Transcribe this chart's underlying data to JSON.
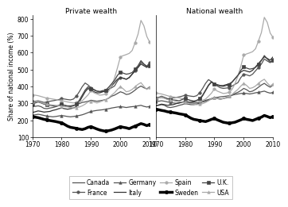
{
  "years": [
    1970,
    1971,
    1972,
    1973,
    1974,
    1975,
    1976,
    1977,
    1978,
    1979,
    1980,
    1981,
    1982,
    1983,
    1984,
    1985,
    1986,
    1987,
    1988,
    1989,
    1990,
    1991,
    1992,
    1993,
    1994,
    1995,
    1996,
    1997,
    1998,
    1999,
    2000,
    2001,
    2002,
    2003,
    2004,
    2005,
    2006,
    2007,
    2008,
    2009,
    2010
  ],
  "private": {
    "Canada": [
      280,
      282,
      285,
      280,
      270,
      268,
      272,
      275,
      280,
      285,
      290,
      288,
      285,
      285,
      288,
      292,
      298,
      305,
      308,
      312,
      318,
      315,
      312,
      315,
      318,
      322,
      330,
      342,
      348,
      358,
      368,
      362,
      352,
      355,
      365,
      378,
      392,
      402,
      392,
      385,
      398
    ],
    "France": [
      310,
      312,
      315,
      310,
      305,
      308,
      312,
      315,
      318,
      322,
      328,
      325,
      322,
      320,
      325,
      342,
      368,
      398,
      420,
      408,
      392,
      382,
      372,
      368,
      370,
      372,
      382,
      392,
      402,
      432,
      452,
      448,
      442,
      452,
      472,
      492,
      512,
      542,
      530,
      520,
      540
    ],
    "Germany": [
      230,
      232,
      235,
      232,
      228,
      225,
      222,
      220,
      222,
      225,
      228,
      225,
      222,
      220,
      222,
      225,
      228,
      232,
      238,
      245,
      252,
      255,
      258,
      260,
      262,
      265,
      268,
      272,
      275,
      278,
      280,
      278,
      275,
      278,
      280,
      282,
      285,
      288,
      282,
      278,
      282
    ],
    "Italy": [
      245,
      250,
      255,
      252,
      248,
      250,
      252,
      258,
      262,
      268,
      272,
      268,
      265,
      268,
      272,
      280,
      308,
      338,
      368,
      388,
      375,
      368,
      362,
      362,
      368,
      372,
      382,
      402,
      422,
      442,
      452,
      448,
      442,
      452,
      472,
      492,
      512,
      532,
      522,
      512,
      532
    ],
    "Spain": [
      350,
      348,
      345,
      340,
      335,
      330,
      328,
      325,
      322,
      318,
      315,
      312,
      308,
      305,
      302,
      305,
      308,
      315,
      332,
      350,
      375,
      362,
      355,
      348,
      350,
      355,
      372,
      405,
      450,
      510,
      575,
      582,
      588,
      595,
      612,
      658,
      708,
      790,
      758,
      695,
      660
    ],
    "Sweden": [
      220,
      218,
      215,
      210,
      205,
      202,
      198,
      195,
      192,
      188,
      185,
      175,
      165,
      158,
      155,
      152,
      148,
      145,
      150,
      158,
      162,
      155,
      148,
      142,
      138,
      135,
      138,
      142,
      148,
      155,
      162,
      158,
      155,
      150,
      158,
      165,
      172,
      180,
      175,
      168,
      175
    ],
    "U.K.": [
      298,
      302,
      308,
      302,
      295,
      290,
      288,
      285,
      282,
      288,
      295,
      288,
      282,
      280,
      285,
      295,
      318,
      348,
      378,
      398,
      385,
      378,
      372,
      370,
      375,
      378,
      395,
      415,
      435,
      465,
      485,
      478,
      472,
      475,
      482,
      502,
      522,
      552,
      532,
      518,
      522
    ],
    "USA": [
      305,
      308,
      312,
      305,
      298,
      295,
      292,
      290,
      288,
      285,
      282,
      280,
      278,
      275,
      272,
      275,
      278,
      285,
      295,
      308,
      312,
      308,
      302,
      308,
      315,
      322,
      332,
      348,
      362,
      382,
      398,
      385,
      368,
      372,
      382,
      398,
      412,
      422,
      400,
      382,
      395
    ]
  },
  "national": {
    "Canada": [
      285,
      288,
      292,
      288,
      278,
      275,
      278,
      282,
      288,
      292,
      298,
      295,
      292,
      292,
      295,
      302,
      310,
      318,
      322,
      328,
      335,
      330,
      325,
      328,
      332,
      338,
      348,
      358,
      365,
      375,
      388,
      380,
      368,
      372,
      382,
      395,
      408,
      418,
      405,
      395,
      408
    ],
    "France": [
      330,
      332,
      335,
      330,
      325,
      328,
      332,
      335,
      338,
      342,
      348,
      345,
      342,
      340,
      345,
      362,
      388,
      418,
      440,
      428,
      412,
      402,
      392,
      388,
      390,
      392,
      402,
      412,
      422,
      452,
      472,
      468,
      462,
      472,
      492,
      512,
      532,
      562,
      550,
      540,
      560
    ],
    "Germany": [
      310,
      312,
      315,
      312,
      308,
      305,
      302,
      300,
      302,
      305,
      308,
      305,
      302,
      300,
      302,
      305,
      308,
      312,
      318,
      325,
      332,
      335,
      338,
      340,
      342,
      345,
      348,
      352,
      355,
      358,
      360,
      358,
      355,
      358,
      362,
      365,
      368,
      372,
      365,
      360,
      365
    ],
    "Italy": [
      285,
      290,
      295,
      292,
      288,
      290,
      292,
      298,
      302,
      308,
      312,
      308,
      305,
      308,
      312,
      320,
      345,
      375,
      405,
      425,
      415,
      410,
      405,
      405,
      410,
      415,
      425,
      445,
      465,
      485,
      495,
      490,
      485,
      495,
      515,
      535,
      555,
      575,
      565,
      555,
      575
    ],
    "Spain": [
      360,
      358,
      355,
      350,
      345,
      340,
      338,
      335,
      332,
      328,
      325,
      322,
      318,
      315,
      312,
      315,
      318,
      325,
      342,
      360,
      385,
      372,
      365,
      358,
      360,
      365,
      382,
      415,
      460,
      520,
      585,
      592,
      598,
      605,
      622,
      668,
      718,
      808,
      778,
      715,
      688
    ],
    "Sweden": [
      265,
      262,
      258,
      255,
      250,
      248,
      245,
      242,
      238,
      235,
      232,
      222,
      212,
      205,
      202,
      198,
      195,
      192,
      198,
      205,
      210,
      202,
      195,
      188,
      185,
      182,
      185,
      188,
      195,
      202,
      210,
      205,
      202,
      198,
      205,
      212,
      218,
      228,
      222,
      215,
      222
    ],
    "U.K.": [
      330,
      335,
      342,
      335,
      328,
      322,
      320,
      318,
      315,
      322,
      330,
      322,
      315,
      312,
      318,
      328,
      348,
      378,
      408,
      428,
      415,
      408,
      402,
      400,
      405,
      408,
      425,
      445,
      465,
      495,
      515,
      508,
      502,
      505,
      512,
      532,
      552,
      582,
      562,
      545,
      552
    ],
    "USA": [
      330,
      332,
      338,
      330,
      322,
      318,
      315,
      312,
      310,
      308,
      305,
      302,
      298,
      295,
      292,
      295,
      298,
      305,
      315,
      328,
      332,
      328,
      322,
      328,
      335,
      342,
      352,
      368,
      382,
      402,
      418,
      405,
      388,
      392,
      402,
      418,
      432,
      442,
      420,
      402,
      415
    ]
  },
  "title_left": "Private wealth",
  "title_right": "National wealth",
  "ylabel": "Share of national income (%)",
  "ylim": [
    100,
    820
  ],
  "yticks": [
    100,
    200,
    300,
    400,
    500,
    600,
    700,
    800
  ],
  "xlim": [
    1970,
    2010
  ],
  "xticks": [
    1970,
    1980,
    1990,
    2000,
    2010
  ],
  "country_order": [
    "Canada",
    "France",
    "Germany",
    "Italy",
    "Spain",
    "Sweden",
    "U.K.",
    "USA"
  ],
  "line_styles": {
    "Canada": {
      "color": "#555555",
      "lw": 0.9,
      "marker": "None",
      "ms": 0,
      "ls": "-",
      "mfc": "#555555"
    },
    "France": {
      "color": "#555555",
      "lw": 0.9,
      "marker": "o",
      "ms": 2.5,
      "ls": "-",
      "mfc": "#555555"
    },
    "Germany": {
      "color": "#555555",
      "lw": 0.9,
      "marker": "^",
      "ms": 2.5,
      "ls": "-",
      "mfc": "#555555"
    },
    "Italy": {
      "color": "#333333",
      "lw": 0.9,
      "marker": "None",
      "ms": 0,
      "ls": "-",
      "mfc": "#333333"
    },
    "Spain": {
      "color": "#aaaaaa",
      "lw": 0.9,
      "marker": "o",
      "ms": 2.5,
      "ls": "-",
      "mfc": "#aaaaaa"
    },
    "Sweden": {
      "color": "#000000",
      "lw": 2.5,
      "marker": "o",
      "ms": 3.0,
      "ls": "-",
      "mfc": "#000000"
    },
    "U.K.": {
      "color": "#444444",
      "lw": 0.9,
      "marker": "s",
      "ms": 2.5,
      "ls": "-",
      "mfc": "#444444"
    },
    "USA": {
      "color": "#aaaaaa",
      "lw": 0.9,
      "marker": "^",
      "ms": 2.5,
      "ls": "-",
      "mfc": "#aaaaaa"
    }
  },
  "legend_row1": [
    "Canada",
    "France",
    "Germany",
    "Italy"
  ],
  "legend_row2": [
    "Spain",
    "Sweden",
    "U.K.",
    "USA"
  ]
}
